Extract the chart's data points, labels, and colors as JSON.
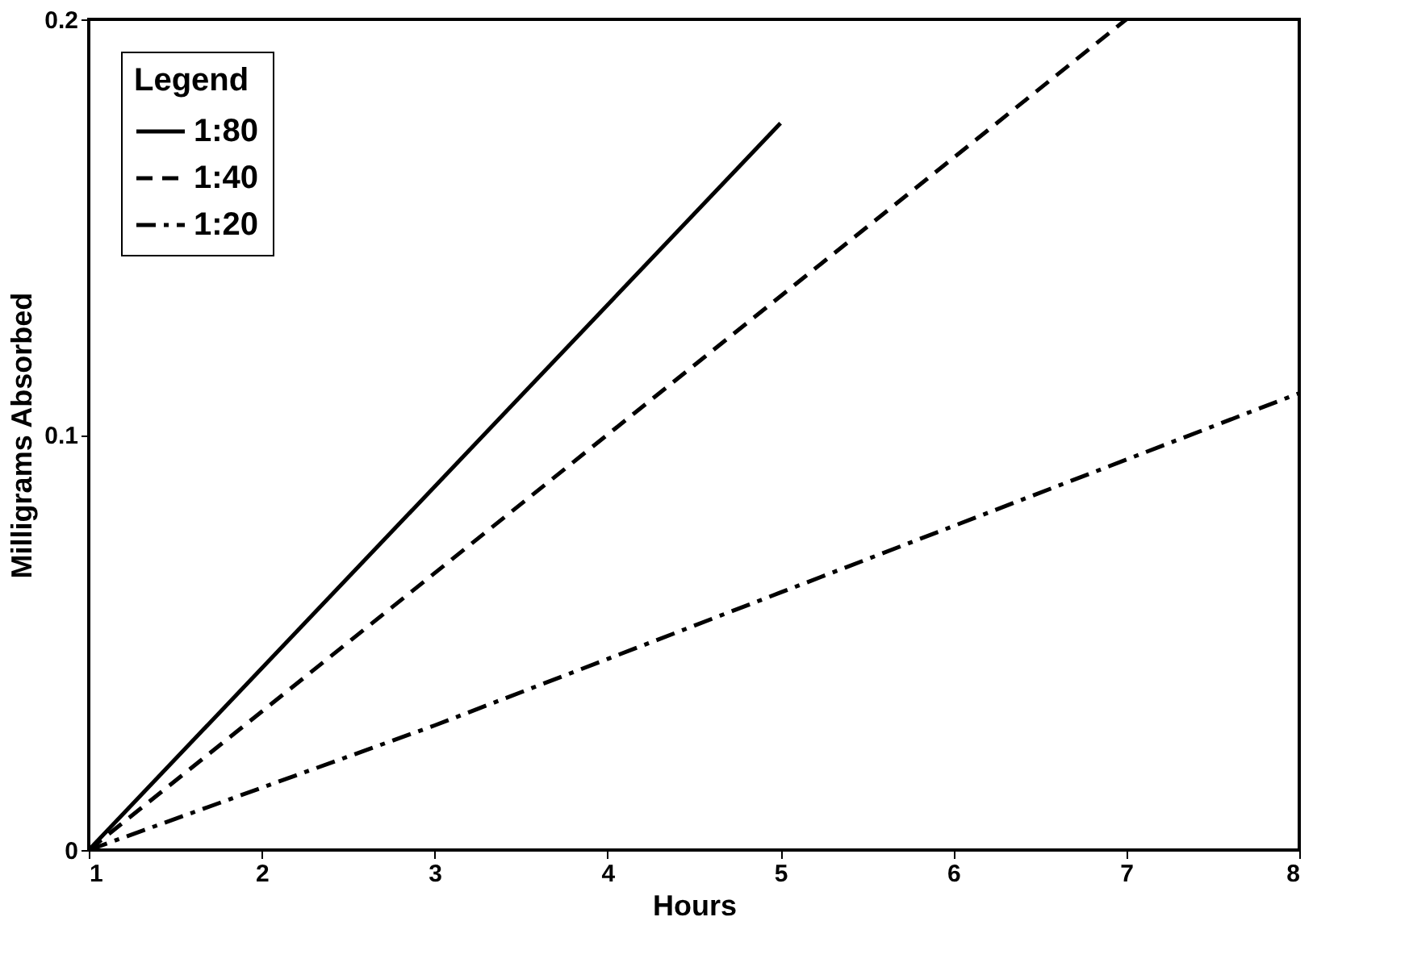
{
  "chart_data": {
    "type": "line",
    "xlabel": "Hours",
    "ylabel": "Milligrams Absorbed",
    "legend_title": "Legend",
    "legend": "top left",
    "grid": false,
    "marker": "none",
    "xlim": [
      1,
      8
    ],
    "xticks": [
      1,
      2,
      3,
      4,
      5,
      6,
      7,
      8
    ],
    "ylim": [
      0,
      0.2
    ],
    "yticks": [
      0,
      0.1,
      0.2
    ],
    "series": [
      {
        "name": "1:80",
        "color": "#000000",
        "line_style": "solid",
        "x": [
          1,
          5
        ],
        "values": [
          0,
          0.175
        ]
      },
      {
        "name": "1:40",
        "color": "#000000",
        "line_style": "dashed",
        "x": [
          1,
          4,
          7
        ],
        "values": [
          0,
          0.1,
          0.2
        ]
      },
      {
        "name": "1:20",
        "color": "#000000",
        "line_style": "dashdot",
        "x": [
          1,
          2,
          3,
          4,
          5,
          6,
          7,
          8
        ],
        "values": [
          0,
          0.015,
          0.03,
          0.046,
          0.062,
          0.078,
          0.094,
          0.11
        ]
      }
    ]
  }
}
